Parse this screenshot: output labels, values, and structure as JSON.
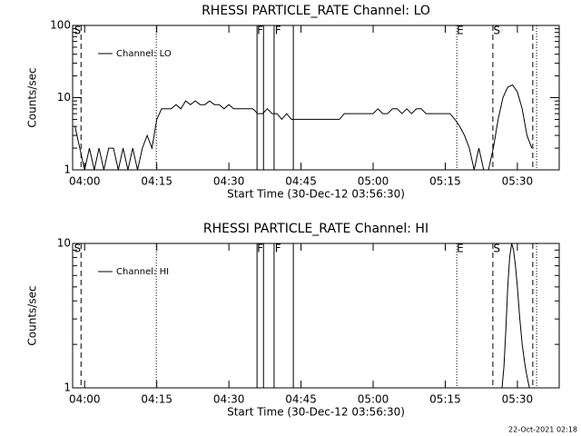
{
  "chart_data": [
    {
      "type": "line",
      "title": "RHESSI PARTICLE_RATE Channel: LO",
      "xlabel": "Start Time (30-Dec-12 03:56:30)",
      "ylabel": "Counts/sec",
      "xlim": [
        237.5,
        338.7
      ],
      "xticks": [
        {
          "value": 240,
          "label": "04:00"
        },
        {
          "value": 255,
          "label": "04:15"
        },
        {
          "value": 270,
          "label": "04:30"
        },
        {
          "value": 285,
          "label": "04:45"
        },
        {
          "value": 300,
          "label": "05:00"
        },
        {
          "value": 315,
          "label": "05:15"
        },
        {
          "value": 330,
          "label": "05:30"
        }
      ],
      "ylim": [
        1,
        100
      ],
      "yticks": [
        1,
        10,
        100
      ],
      "log_y": true,
      "series": [
        {
          "name": "Channel: LO",
          "color": "#000000",
          "x": [
            238,
            239,
            240,
            241,
            242,
            243,
            244,
            245,
            246,
            247,
            248,
            249,
            250,
            251,
            252,
            253,
            254,
            255,
            256,
            257,
            258,
            259,
            260,
            261,
            262,
            263,
            264,
            265,
            266,
            267,
            268,
            269,
            270,
            271,
            272,
            273,
            274,
            275,
            276,
            277,
            278,
            279,
            280,
            281,
            282,
            283,
            284,
            285,
            286,
            287,
            288,
            289,
            290,
            291,
            292,
            293,
            294,
            295,
            296,
            297,
            298,
            299,
            300,
            301,
            302,
            303,
            304,
            305,
            306,
            307,
            308,
            309,
            310,
            311,
            312,
            313,
            314,
            315,
            316,
            317,
            318,
            319,
            320,
            321,
            322,
            323,
            324,
            325,
            326,
            327,
            328,
            329,
            330,
            331,
            332,
            333
          ],
          "values": [
            4,
            2,
            1,
            2,
            1,
            2,
            1,
            2,
            2,
            1,
            2,
            1,
            2,
            1,
            2,
            3,
            2,
            5,
            7,
            7,
            7,
            8,
            7,
            9,
            8,
            9,
            8,
            8,
            9,
            8,
            8,
            7,
            8,
            7,
            7,
            7,
            7,
            7,
            6,
            6,
            7,
            6,
            6,
            5,
            6,
            5,
            5,
            5,
            5,
            5,
            5,
            5,
            5,
            5,
            5,
            5,
            6,
            6,
            6,
            6,
            6,
            6,
            6,
            7,
            6,
            6,
            7,
            7,
            6,
            7,
            6,
            7,
            7,
            6,
            6,
            6,
            6,
            6,
            6,
            5,
            4,
            3,
            2,
            1,
            2,
            1,
            1,
            2,
            5,
            10,
            14,
            15,
            12,
            7,
            3,
            2
          ]
        }
      ],
      "markers": [
        {
          "x": 239.25,
          "style": "dashed"
        },
        {
          "x": 254.9,
          "style": "dotted"
        },
        {
          "x": 275.85,
          "style": "solid"
        },
        {
          "x": 277.2,
          "style": "solid"
        },
        {
          "x": 279.4,
          "style": "solid"
        },
        {
          "x": 283.4,
          "style": "solid"
        },
        {
          "x": 317.4,
          "style": "dotted"
        },
        {
          "x": 324.9,
          "style": "dashed"
        },
        {
          "x": 333.2,
          "style": "dashed"
        },
        {
          "x": 334.0,
          "style": "dotted"
        }
      ],
      "marker_labels": [
        {
          "text": "S",
          "x": 238.5
        },
        {
          "text": "F",
          "x": 276.5
        },
        {
          "text": "F",
          "x": 280.2
        },
        {
          "text": "E",
          "x": 318.1
        },
        {
          "text": "S",
          "x": 325.7
        }
      ]
    },
    {
      "type": "line",
      "title": "RHESSI PARTICLE_RATE Channel: HI",
      "xlabel": "Start Time (30-Dec-12 03:56:30)",
      "ylabel": "Counts/sec",
      "xlim": [
        237.5,
        338.7
      ],
      "xticks": [
        {
          "value": 240,
          "label": "04:00"
        },
        {
          "value": 255,
          "label": "04:15"
        },
        {
          "value": 270,
          "label": "04:30"
        },
        {
          "value": 285,
          "label": "04:45"
        },
        {
          "value": 300,
          "label": "05:00"
        },
        {
          "value": 315,
          "label": "05:15"
        },
        {
          "value": 330,
          "label": "05:30"
        }
      ],
      "ylim": [
        1,
        10
      ],
      "yticks": [
        1,
        10
      ],
      "log_y": true,
      "series": [
        {
          "name": "Channel: HI",
          "color": "#000000",
          "x": [
            326.8,
            327.2,
            327.6,
            328,
            328.4,
            328.8,
            329.2,
            329.6,
            330,
            330.5,
            331,
            331.5,
            332,
            332.5
          ],
          "values": [
            1,
            1.4,
            2.5,
            5,
            8,
            10,
            9,
            7,
            5,
            3,
            2,
            1.5,
            1.2,
            1
          ]
        }
      ],
      "markers": [
        {
          "x": 239.25,
          "style": "dashed"
        },
        {
          "x": 254.9,
          "style": "dotted"
        },
        {
          "x": 275.85,
          "style": "solid"
        },
        {
          "x": 277.2,
          "style": "solid"
        },
        {
          "x": 279.4,
          "style": "solid"
        },
        {
          "x": 283.4,
          "style": "solid"
        },
        {
          "x": 317.4,
          "style": "dotted"
        },
        {
          "x": 324.9,
          "style": "dashed"
        },
        {
          "x": 333.2,
          "style": "dashed"
        },
        {
          "x": 334.0,
          "style": "dotted"
        }
      ],
      "marker_labels": [
        {
          "text": "S",
          "x": 238.5
        },
        {
          "text": "F",
          "x": 276.5
        },
        {
          "text": "F",
          "x": 280.2
        },
        {
          "text": "E",
          "x": 318.1
        },
        {
          "text": "S",
          "x": 325.7
        }
      ]
    }
  ],
  "footer": "22-Oct-2021 02:18"
}
